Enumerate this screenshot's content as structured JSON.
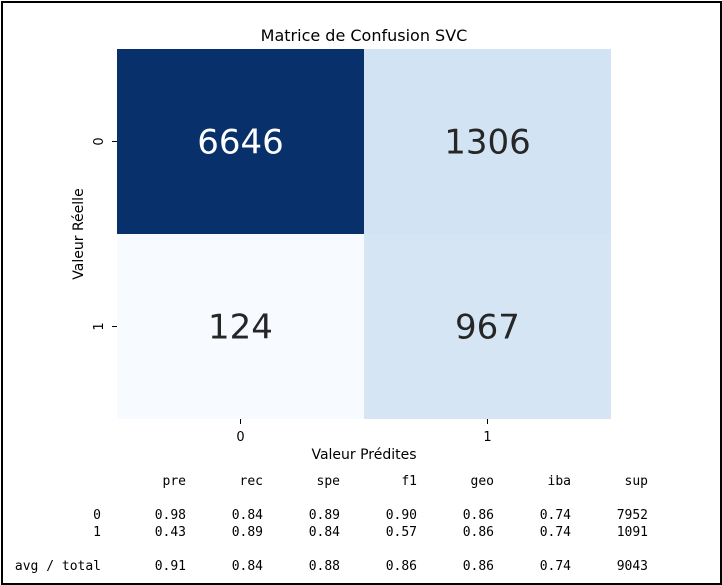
{
  "chart_data": {
    "type": "heatmap",
    "title": "Matrice de Confusion SVC",
    "xlabel": "Valeur Prédites",
    "ylabel": "Valeur Réelle",
    "x_categories": [
      "0",
      "1"
    ],
    "y_categories": [
      "0",
      "1"
    ],
    "values": [
      [
        6646,
        1306
      ],
      [
        124,
        967
      ]
    ],
    "colormap": "Blues",
    "colorbar": false,
    "colors": {
      "cells": [
        [
          "#08306b",
          "#d2e3f3"
        ],
        [
          "#f7fbff",
          "#d5e5f4"
        ]
      ],
      "text": [
        [
          "#ffffff",
          "#262626"
        ],
        [
          "#262626",
          "#262626"
        ]
      ]
    }
  },
  "report": {
    "headers": [
      "pre",
      "rec",
      "spe",
      "f1",
      "geo",
      "iba",
      "sup"
    ],
    "rows": [
      {
        "label": "0",
        "values": [
          "0.98",
          "0.84",
          "0.89",
          "0.90",
          "0.86",
          "0.74",
          "7952"
        ]
      },
      {
        "label": "1",
        "values": [
          "0.43",
          "0.89",
          "0.84",
          "0.57",
          "0.86",
          "0.74",
          "1091"
        ]
      },
      {
        "label": "avg / total",
        "values": [
          "0.91",
          "0.84",
          "0.88",
          "0.86",
          "0.86",
          "0.74",
          "9043"
        ]
      }
    ]
  }
}
